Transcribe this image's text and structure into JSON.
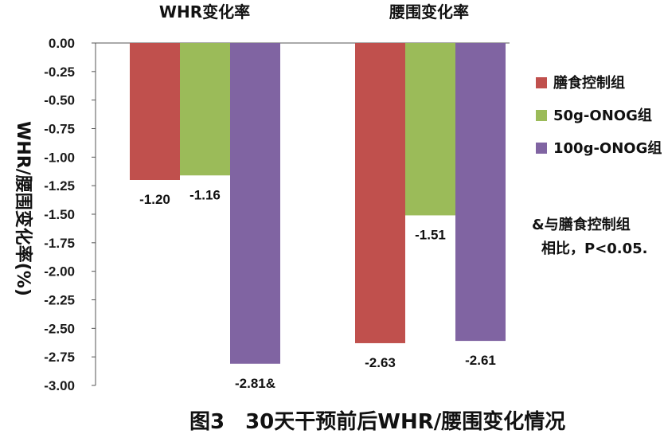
{
  "chart_data": {
    "type": "bar",
    "categories": [
      "WHR变化率",
      "腰围变化率"
    ],
    "series": [
      {
        "name": "膳食控制组",
        "color": "#c0504d",
        "values": [
          -1.2,
          -2.63
        ],
        "labels": [
          "-1.20",
          "-2.63"
        ]
      },
      {
        "name": "50g-ONOG组",
        "color": "#9bbb59",
        "values": [
          -1.16,
          -1.51
        ],
        "labels": [
          "-1.16",
          "-1.51"
        ]
      },
      {
        "name": "100g-ONOG组",
        "color": "#8064a2",
        "values": [
          -2.81,
          -2.61
        ],
        "labels": [
          "-2.81&",
          "-2.61"
        ]
      }
    ],
    "ylabel": "WHR/腰围变化率(%)",
    "ylim": [
      -3.0,
      0.0
    ],
    "yticks": [
      "0.00",
      "-0.25",
      "-0.50",
      "-0.75",
      "-1.00",
      "-1.25",
      "-1.50",
      "-1.75",
      "-2.00",
      "-2.25",
      "-2.50",
      "-2.75",
      "-3.00"
    ],
    "legend_position": "right",
    "grid": false,
    "annotation": [
      "&与膳食控制组",
      "相比，P<0.05."
    ],
    "caption": "图3　30天干预前后WHR/腰围变化情况"
  }
}
